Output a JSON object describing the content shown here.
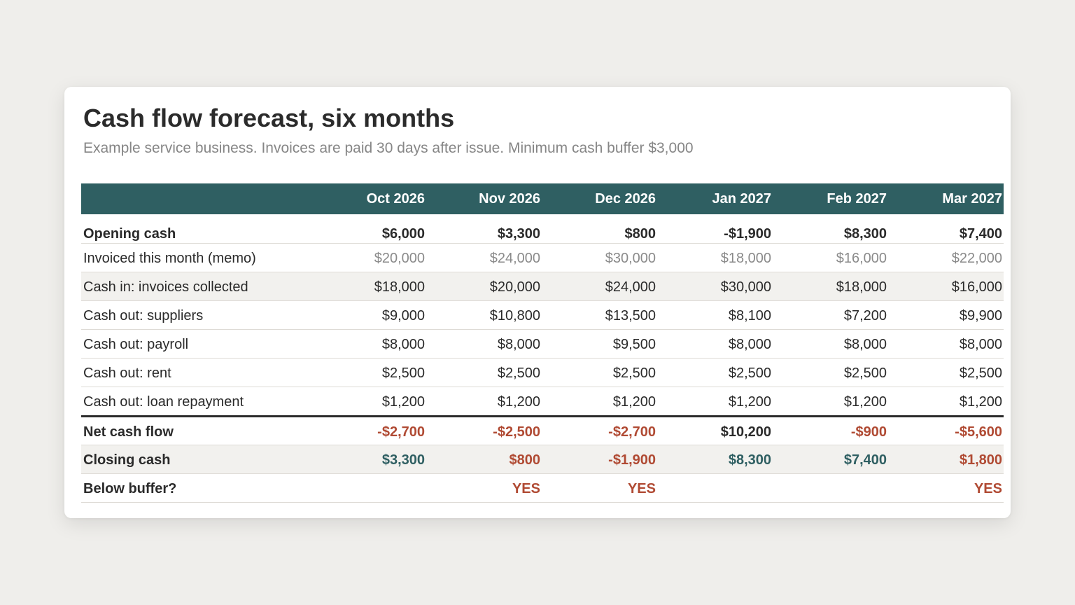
{
  "title": "Cash flow forecast, six months",
  "subtitle": "Example service business. Invoices are paid 30 days after issue. Minimum cash buffer $3,000",
  "table": {
    "header_label": "",
    "months": [
      "Oct 2026",
      "Nov 2026",
      "Dec 2026",
      "Jan 2027",
      "Feb 2027",
      "Mar 2027"
    ],
    "rows": {
      "opening": {
        "label": "Opening cash",
        "values": [
          "$6,000",
          "$3,300",
          "$800",
          "-$1,900",
          "$8,300",
          "$7,400"
        ]
      },
      "invoiced": {
        "label": "Invoiced this month (memo)",
        "values": [
          "$20,000",
          "$24,000",
          "$30,000",
          "$18,000",
          "$16,000",
          "$22,000"
        ]
      },
      "cash_in": {
        "label": "Cash in: invoices collected",
        "values": [
          "$18,000",
          "$20,000",
          "$24,000",
          "$30,000",
          "$18,000",
          "$16,000"
        ]
      },
      "suppliers": {
        "label": "Cash out: suppliers",
        "values": [
          "$9,000",
          "$10,800",
          "$13,500",
          "$8,100",
          "$7,200",
          "$9,900"
        ]
      },
      "payroll": {
        "label": "Cash out: payroll",
        "values": [
          "$8,000",
          "$8,000",
          "$9,500",
          "$8,000",
          "$8,000",
          "$8,000"
        ]
      },
      "rent": {
        "label": "Cash out: rent",
        "values": [
          "$2,500",
          "$2,500",
          "$2,500",
          "$2,500",
          "$2,500",
          "$2,500"
        ]
      },
      "loan": {
        "label": "Cash out: loan repayment",
        "values": [
          "$1,200",
          "$1,200",
          "$1,200",
          "$1,200",
          "$1,200",
          "$1,200"
        ]
      },
      "net": {
        "label": "Net cash flow",
        "values": [
          "-$2,700",
          "-$2,500",
          "-$2,700",
          "$10,200",
          "-$900",
          "-$5,600"
        ]
      },
      "closing": {
        "label": "Closing cash",
        "values": [
          "$3,300",
          "$800",
          "-$1,900",
          "$8,300",
          "$7,400",
          "$1,800"
        ]
      },
      "buffer": {
        "label": "Below buffer?",
        "values": [
          "",
          "YES",
          "YES",
          "",
          "",
          "YES"
        ]
      }
    }
  },
  "colors": {
    "header_bg": "#2f5f62",
    "negative": "#b04a33",
    "positive_closing": "#2f5f62",
    "flag": "#b04a33",
    "memo_text": "#8a8a8a"
  }
}
